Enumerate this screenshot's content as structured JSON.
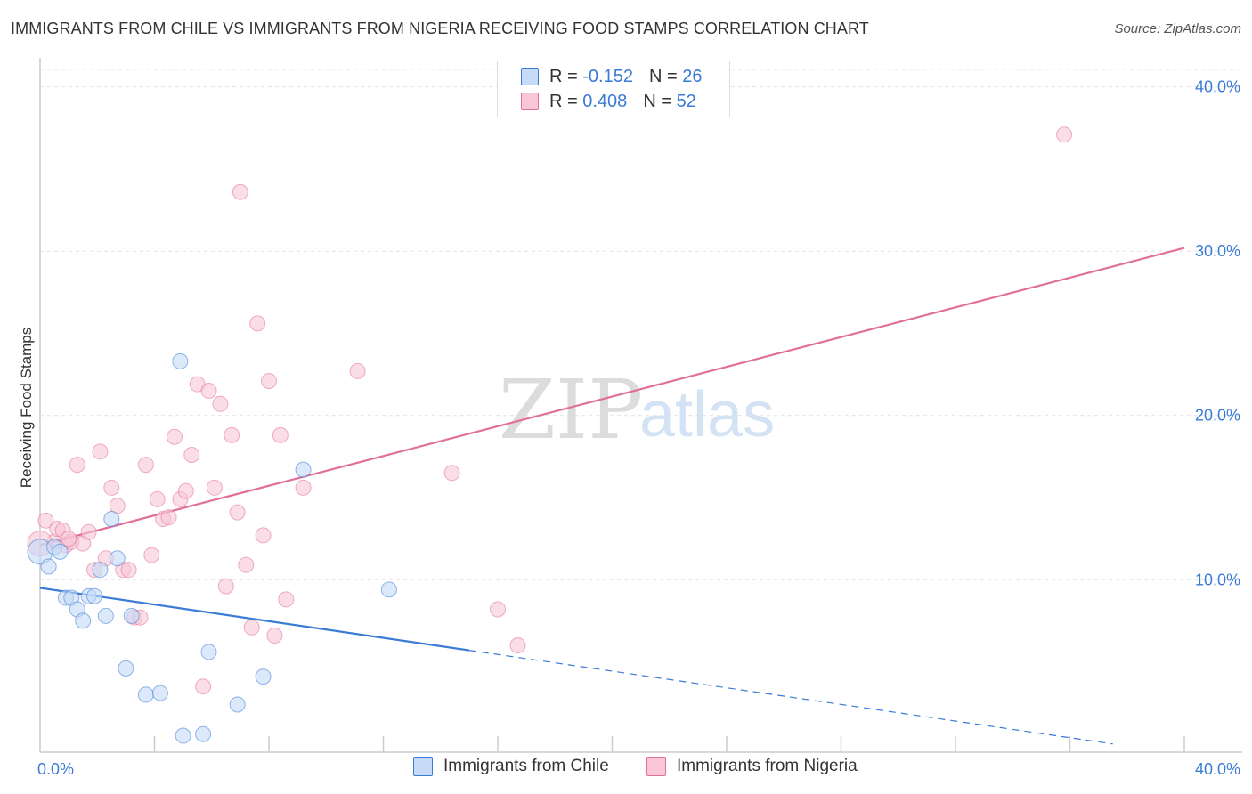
{
  "title": "IMMIGRANTS FROM CHILE VS IMMIGRANTS FROM NIGERIA RECEIVING FOOD STAMPS CORRELATION CHART",
  "source": "Source: ZipAtlas.com",
  "watermark": {
    "zip": "ZIP",
    "atlas": "atlas"
  },
  "colors": {
    "chile": "#3a7bd5",
    "chile_fill": "#c5dbf7",
    "nigeria": "#e0709a",
    "nigeria_fill": "#f8c6d6",
    "axis_text": "#3a7bd5"
  },
  "legend": {
    "chile": {
      "r_label": "R =",
      "r_value": "-0.152",
      "n_label": "N =",
      "n_value": "26"
    },
    "nigeria": {
      "r_label": "R =",
      "r_value": "0.408",
      "n_label": "N =",
      "n_value": "52"
    }
  },
  "bottom_legend": {
    "chile": "Immigrants from Chile",
    "nigeria": "Immigrants from Nigeria"
  },
  "chart_data": {
    "type": "scatter",
    "xlabel": "",
    "ylabel": "Receiving Food Stamps",
    "xlim": [
      0,
      40
    ],
    "ylim": [
      -0.5,
      41.5
    ],
    "x_tick_labels": [
      "0.0%",
      "40.0%"
    ],
    "y_ticks": [
      10,
      20,
      30,
      40
    ],
    "y_tick_labels": [
      "10.0%",
      "20.0%",
      "30.0%",
      "40.0%"
    ],
    "grid": true,
    "series": [
      {
        "name": "Immigrants from Chile",
        "points": [
          [
            0.0,
            11.7
          ],
          [
            0.3,
            10.8
          ],
          [
            0.5,
            12.0
          ],
          [
            0.7,
            11.7
          ],
          [
            0.9,
            8.9
          ],
          [
            1.1,
            8.9
          ],
          [
            1.3,
            8.2
          ],
          [
            1.5,
            7.5
          ],
          [
            1.7,
            9.0
          ],
          [
            1.9,
            9.0
          ],
          [
            2.1,
            10.6
          ],
          [
            2.3,
            7.8
          ],
          [
            2.5,
            13.7
          ],
          [
            2.7,
            11.3
          ],
          [
            3.0,
            4.6
          ],
          [
            3.2,
            7.8
          ],
          [
            3.7,
            3.0
          ],
          [
            4.2,
            3.1
          ],
          [
            4.9,
            23.3
          ],
          [
            5.0,
            0.5
          ],
          [
            5.7,
            0.6
          ],
          [
            5.9,
            5.6
          ],
          [
            6.9,
            2.4
          ],
          [
            7.8,
            4.1
          ],
          [
            9.2,
            16.7
          ],
          [
            12.2,
            9.4
          ]
        ],
        "trend": {
          "x0": 0,
          "y0": 9.5,
          "x1": 15,
          "y1": 5.7,
          "dashed_to_x": 37.5,
          "dashed_to_y": 0.0
        }
      },
      {
        "name": "Immigrants from Nigeria",
        "points": [
          [
            0.2,
            13.6
          ],
          [
            0.5,
            12.3
          ],
          [
            0.6,
            13.1
          ],
          [
            0.8,
            13.0
          ],
          [
            0.9,
            12.1
          ],
          [
            1.1,
            12.3
          ],
          [
            1.3,
            17.0
          ],
          [
            1.5,
            12.2
          ],
          [
            1.7,
            12.9
          ],
          [
            1.9,
            10.6
          ],
          [
            2.1,
            17.8
          ],
          [
            2.3,
            11.3
          ],
          [
            2.5,
            15.6
          ],
          [
            2.7,
            14.5
          ],
          [
            2.9,
            10.6
          ],
          [
            3.1,
            10.6
          ],
          [
            3.3,
            7.7
          ],
          [
            3.5,
            7.7
          ],
          [
            3.7,
            17.0
          ],
          [
            3.9,
            11.5
          ],
          [
            4.1,
            14.9
          ],
          [
            4.3,
            13.7
          ],
          [
            4.5,
            13.8
          ],
          [
            4.7,
            18.7
          ],
          [
            4.9,
            14.9
          ],
          [
            5.1,
            15.4
          ],
          [
            5.3,
            17.6
          ],
          [
            5.5,
            21.9
          ],
          [
            5.7,
            3.5
          ],
          [
            5.9,
            21.5
          ],
          [
            6.1,
            15.6
          ],
          [
            6.3,
            20.7
          ],
          [
            6.5,
            9.6
          ],
          [
            6.7,
            18.8
          ],
          [
            6.9,
            14.1
          ],
          [
            7.0,
            33.6
          ],
          [
            7.2,
            10.9
          ],
          [
            7.4,
            7.1
          ],
          [
            7.6,
            25.6
          ],
          [
            7.8,
            12.7
          ],
          [
            8.0,
            22.1
          ],
          [
            8.2,
            6.6
          ],
          [
            8.4,
            18.8
          ],
          [
            8.6,
            8.8
          ],
          [
            9.2,
            15.6
          ],
          [
            11.1,
            22.7
          ],
          [
            14.4,
            16.5
          ],
          [
            16.0,
            8.2
          ],
          [
            16.7,
            6.0
          ],
          [
            35.8,
            37.1
          ],
          [
            0.0,
            12.2
          ],
          [
            1.0,
            12.5
          ]
        ],
        "trend": {
          "x0": 0,
          "y0": 12.1,
          "x1": 40,
          "y1": 30.2
        }
      }
    ]
  }
}
